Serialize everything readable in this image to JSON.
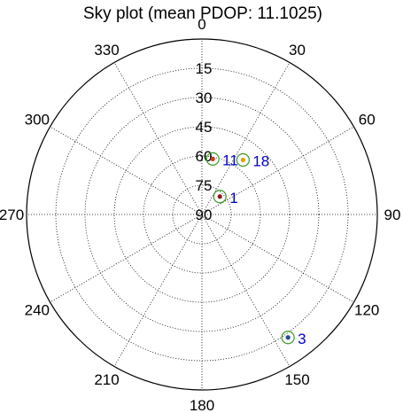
{
  "title": "Sky plot (mean PDOP: 11.1025)",
  "chart_data": {
    "type": "scatter",
    "projection": "polar",
    "title": "Sky plot (mean PDOP: 11.1025)",
    "azimuth_ticks": [
      0,
      30,
      60,
      90,
      120,
      150,
      180,
      210,
      240,
      270,
      300,
      330
    ],
    "azimuth_labels": [
      "0",
      "30",
      "60",
      "90",
      "120",
      "150",
      "180",
      "210",
      "240",
      "270",
      "300",
      "330"
    ],
    "elevation_ticks": [
      15,
      30,
      45,
      60,
      75,
      90
    ],
    "elevation_labels": [
      "15",
      "30",
      "45",
      "60",
      "75",
      "90"
    ],
    "grid": true,
    "colors": {
      "grid": "#000000",
      "ring_marker": "#3a9a2a",
      "label": "#0000cc"
    },
    "satellites": [
      {
        "prn": "1",
        "azimuth": 45,
        "elevation": 77,
        "color": "#8b1a1a"
      },
      {
        "prn": "11",
        "azimuth": 11,
        "elevation": 61,
        "color": "#d03a1a"
      },
      {
        "prn": "18",
        "azimuth": 37,
        "elevation": 55,
        "color": "#d9a400"
      },
      {
        "prn": "3",
        "azimuth": 145,
        "elevation": 13,
        "color": "#1f4f8f"
      }
    ]
  }
}
